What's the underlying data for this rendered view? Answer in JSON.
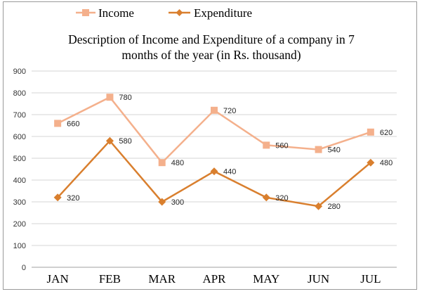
{
  "chart_data": {
    "type": "line",
    "title_line1": "Description of Income and Expenditure of a company in 7",
    "title_line2": "months of the year (in Rs. thousand)",
    "categories": [
      "JAN",
      "FEB",
      "MAR",
      "APR",
      "MAY",
      "JUN",
      "JUL"
    ],
    "ylim": [
      0,
      900
    ],
    "yticks": [
      "0",
      "100",
      "200",
      "300",
      "400",
      "500",
      "600",
      "700",
      "800",
      "900"
    ],
    "grid": true,
    "legend_position": "top",
    "series": [
      {
        "name": "Income",
        "color": "#f4b08c",
        "marker": "square",
        "values": [
          660,
          780,
          480,
          720,
          560,
          540,
          620
        ],
        "labels": [
          "660",
          "780",
          "480",
          "720",
          "560",
          "540",
          "620"
        ]
      },
      {
        "name": "Expenditure",
        "color": "#d97f2e",
        "marker": "diamond",
        "values": [
          320,
          580,
          300,
          440,
          320,
          280,
          480
        ],
        "labels": [
          "320",
          "580",
          "300",
          "440",
          "320",
          "280",
          "480"
        ]
      }
    ]
  }
}
